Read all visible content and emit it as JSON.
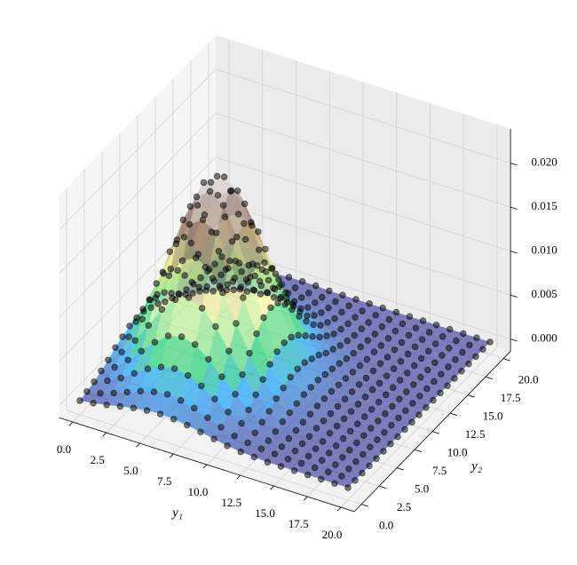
{
  "chart_data": {
    "type": "surface3d",
    "colormap": "terrain",
    "x_label": "y₁",
    "y_label": "y₂",
    "x": [
      0,
      1,
      2,
      3,
      4,
      5,
      6,
      7,
      8,
      9,
      10,
      11,
      12,
      13,
      14,
      15,
      16,
      17,
      18,
      19,
      20
    ],
    "y": [
      0,
      1,
      2,
      3,
      4,
      5,
      6,
      7,
      8,
      9,
      10,
      11,
      12,
      13,
      14,
      15,
      16,
      17,
      18,
      19,
      20
    ],
    "z": [
      [
        0.0002,
        0.0004,
        0.0007,
        0.001,
        0.0013,
        0.0015,
        0.0016,
        0.0015,
        0.0013,
        0.001,
        0.0007,
        0.0004,
        0.0002,
        0.0001,
        0,
        0,
        0,
        0,
        0,
        0,
        0
      ],
      [
        0.0004,
        0.0007,
        0.0012,
        0.0018,
        0.0024,
        0.0028,
        0.003,
        0.0028,
        0.0024,
        0.0018,
        0.0012,
        0.0007,
        0.0004,
        0.0002,
        0.0001,
        0,
        0,
        0,
        0,
        0,
        0
      ],
      [
        0.0007,
        0.0013,
        0.0021,
        0.0031,
        0.0041,
        0.0048,
        0.0051,
        0.0048,
        0.0041,
        0.0031,
        0.0021,
        0.0013,
        0.0007,
        0.0003,
        0.0001,
        0.0001,
        0,
        0,
        0,
        0,
        0
      ],
      [
        0.0011,
        0.002,
        0.0033,
        0.0048,
        0.0063,
        0.0075,
        0.0079,
        0.0075,
        0.0063,
        0.0048,
        0.0033,
        0.002,
        0.0011,
        0.0005,
        0.0002,
        0.0001,
        0,
        0,
        0,
        0,
        0
      ],
      [
        0.0015,
        0.0029,
        0.0047,
        0.0069,
        0.0092,
        0.0108,
        0.0115,
        0.0108,
        0.0092,
        0.0069,
        0.0047,
        0.0029,
        0.0015,
        0.0008,
        0.0003,
        0.0001,
        0,
        0,
        0,
        0,
        0
      ],
      [
        0.0021,
        0.0038,
        0.0063,
        0.0092,
        0.0122,
        0.0144,
        0.0152,
        0.0144,
        0.0122,
        0.0092,
        0.0063,
        0.0038,
        0.0021,
        0.001,
        0.0004,
        0.0002,
        0.0001,
        0,
        0,
        0,
        0
      ],
      [
        0.0025,
        0.0047,
        0.0077,
        0.0113,
        0.015,
        0.0177,
        0.0187,
        0.0177,
        0.015,
        0.0113,
        0.0077,
        0.0047,
        0.0025,
        0.0012,
        0.0005,
        0.0002,
        0.0001,
        0,
        0,
        0,
        0
      ],
      [
        0.0029,
        0.0053,
        0.0087,
        0.0128,
        0.0169,
        0.02,
        0.0211,
        0.02,
        0.0169,
        0.0128,
        0.0087,
        0.0053,
        0.0029,
        0.0014,
        0.0006,
        0.0002,
        0.0001,
        0,
        0,
        0,
        0
      ],
      [
        0.003,
        0.0055,
        0.009,
        0.0133,
        0.0176,
        0.0208,
        0.022,
        0.0208,
        0.0176,
        0.0133,
        0.009,
        0.0055,
        0.003,
        0.0014,
        0.0006,
        0.0002,
        0.0001,
        0,
        0,
        0,
        0
      ],
      [
        0.0029,
        0.0053,
        0.0087,
        0.0128,
        0.0169,
        0.02,
        0.0211,
        0.02,
        0.0169,
        0.0128,
        0.0087,
        0.0053,
        0.0029,
        0.0014,
        0.0006,
        0.0002,
        0.0001,
        0,
        0,
        0,
        0
      ],
      [
        0.0025,
        0.0047,
        0.0077,
        0.0113,
        0.015,
        0.0177,
        0.0187,
        0.0177,
        0.015,
        0.0113,
        0.0077,
        0.0047,
        0.0025,
        0.0012,
        0.0005,
        0.0002,
        0.0001,
        0,
        0,
        0,
        0
      ],
      [
        0.0021,
        0.0038,
        0.0063,
        0.0092,
        0.0122,
        0.0144,
        0.0152,
        0.0144,
        0.0122,
        0.0092,
        0.0063,
        0.0038,
        0.0021,
        0.001,
        0.0004,
        0.0002,
        0.0001,
        0,
        0,
        0,
        0
      ],
      [
        0.0015,
        0.0029,
        0.0047,
        0.0069,
        0.0092,
        0.0108,
        0.0115,
        0.0108,
        0.0092,
        0.0069,
        0.0047,
        0.0029,
        0.0015,
        0.0008,
        0.0003,
        0.0001,
        0,
        0,
        0,
        0,
        0
      ],
      [
        0.0011,
        0.002,
        0.0033,
        0.0048,
        0.0063,
        0.0075,
        0.0079,
        0.0075,
        0.0063,
        0.0048,
        0.0033,
        0.002,
        0.0011,
        0.0005,
        0.0002,
        0.0001,
        0,
        0,
        0,
        0,
        0
      ],
      [
        0.0007,
        0.0013,
        0.0021,
        0.0031,
        0.0041,
        0.0048,
        0.0051,
        0.0048,
        0.0041,
        0.0031,
        0.0021,
        0.0013,
        0.0007,
        0.0003,
        0.0001,
        0.0001,
        0,
        0,
        0,
        0,
        0
      ],
      [
        0.0004,
        0.0007,
        0.0012,
        0.0018,
        0.0024,
        0.0028,
        0.003,
        0.0028,
        0.0024,
        0.0018,
        0.0012,
        0.0007,
        0.0004,
        0.0002,
        0.0001,
        0,
        0,
        0,
        0,
        0,
        0
      ],
      [
        0.0002,
        0.0004,
        0.0007,
        0.001,
        0.0013,
        0.0015,
        0.0016,
        0.0015,
        0.0013,
        0.001,
        0.0007,
        0.0004,
        0.0002,
        0.0001,
        0,
        0,
        0,
        0,
        0,
        0,
        0
      ],
      [
        0.0001,
        0.0002,
        0.0003,
        0.0005,
        0.0006,
        0.0008,
        0.0008,
        0.0008,
        0.0006,
        0.0005,
        0.0003,
        0.0002,
        0.0001,
        0,
        0,
        0,
        0,
        0,
        0,
        0,
        0
      ],
      [
        0,
        0.0001,
        0.0002,
        0.0002,
        0.0003,
        0.0004,
        0.0004,
        0.0004,
        0.0003,
        0.0002,
        0.0002,
        0.0001,
        0,
        0,
        0,
        0,
        0,
        0,
        0,
        0,
        0
      ],
      [
        0,
        0,
        0.0001,
        0.0001,
        0.0001,
        0.0001,
        0.0002,
        0.0001,
        0.0001,
        0.0001,
        0.0001,
        0,
        0,
        0,
        0,
        0,
        0,
        0,
        0,
        0,
        0
      ],
      [
        0,
        0,
        0,
        0,
        0,
        0.0001,
        0.0001,
        0.0001,
        0,
        0,
        0,
        0,
        0,
        0,
        0,
        0,
        0,
        0,
        0,
        0,
        0
      ]
    ],
    "xlim": [
      -1,
      21
    ],
    "ylim": [
      -1,
      21
    ],
    "zlim": [
      -0.0014,
      0.0239
    ],
    "xticks": [
      {
        "value": 0,
        "label": "0.0"
      },
      2.5,
      {
        "value": 5,
        "label": "5.0"
      },
      7.5,
      {
        "value": 10,
        "label": "10.0"
      },
      12.5,
      {
        "value": 15,
        "label": "15.0"
      },
      17.5,
      {
        "value": 20,
        "label": "20.0"
      }
    ],
    "yticks": [
      {
        "value": 0,
        "label": "0.0"
      },
      2.5,
      {
        "value": 5,
        "label": "5.0"
      },
      7.5,
      {
        "value": 10,
        "label": "10.0"
      },
      12.5,
      {
        "value": 15,
        "label": "15.0"
      },
      17.5,
      {
        "value": 20,
        "label": "20.0"
      }
    ],
    "zticks": [
      {
        "value": 0,
        "label": "0.000"
      },
      {
        "value": 0.005,
        "label": "0.005"
      },
      {
        "value": 0.01,
        "label": "0.010"
      },
      {
        "value": 0.015,
        "label": "0.015"
      },
      {
        "value": 0.02,
        "label": "0.020"
      }
    ],
    "grid": true
  }
}
